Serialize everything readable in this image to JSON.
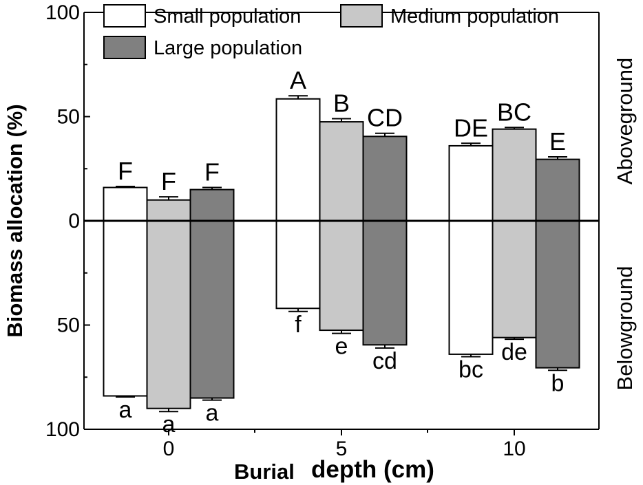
{
  "chart_data": {
    "type": "bar",
    "title": "",
    "xlabel_parts": [
      "Burial",
      "depth (cm)"
    ],
    "ylabel": "Biomass allocation (%)",
    "right_labels": {
      "top": "Aboveground",
      "bottom": "Belowground"
    },
    "categories": [
      "0",
      "5",
      "10"
    ],
    "yticks": [
      {
        "value": 100,
        "label": "100"
      },
      {
        "value": 50,
        "label": "50"
      },
      {
        "value": 0,
        "label": "0"
      },
      {
        "value": -50,
        "label": "50"
      },
      {
        "value": -100,
        "label": "100"
      }
    ],
    "ylim": [
      -100,
      100
    ],
    "legend_position": "top-left",
    "series": [
      {
        "name": "Small population",
        "color": "#ffffff",
        "above": [
          16,
          58.5,
          36
        ],
        "above_err": [
          0.5,
          1.5,
          1.2
        ],
        "above_letters": [
          "F",
          "A",
          "DE"
        ],
        "below": [
          84,
          42,
          64
        ],
        "below_err": [
          0.5,
          1.5,
          1.2
        ],
        "below_letters": [
          "a",
          "f",
          "bc"
        ]
      },
      {
        "name": "Medium population",
        "color": "#c8c8c8",
        "above": [
          10,
          47.5,
          44
        ],
        "above_err": [
          1.5,
          1.5,
          0.8
        ],
        "above_letters": [
          "F",
          "B",
          "BC"
        ],
        "below": [
          90,
          52.5,
          56
        ],
        "below_err": [
          1.5,
          1.5,
          0.8
        ],
        "below_letters": [
          "a",
          "e",
          "de"
        ]
      },
      {
        "name": "Large population",
        "color": "#808080",
        "above": [
          15,
          40.5,
          29.5
        ],
        "above_err": [
          1.0,
          1.5,
          1.2
        ],
        "above_letters": [
          "F",
          "CD",
          "E"
        ],
        "below": [
          85,
          59.5,
          70.5
        ],
        "below_err": [
          1.0,
          1.5,
          1.2
        ],
        "below_letters": [
          "a",
          "cd",
          "b"
        ]
      }
    ]
  }
}
